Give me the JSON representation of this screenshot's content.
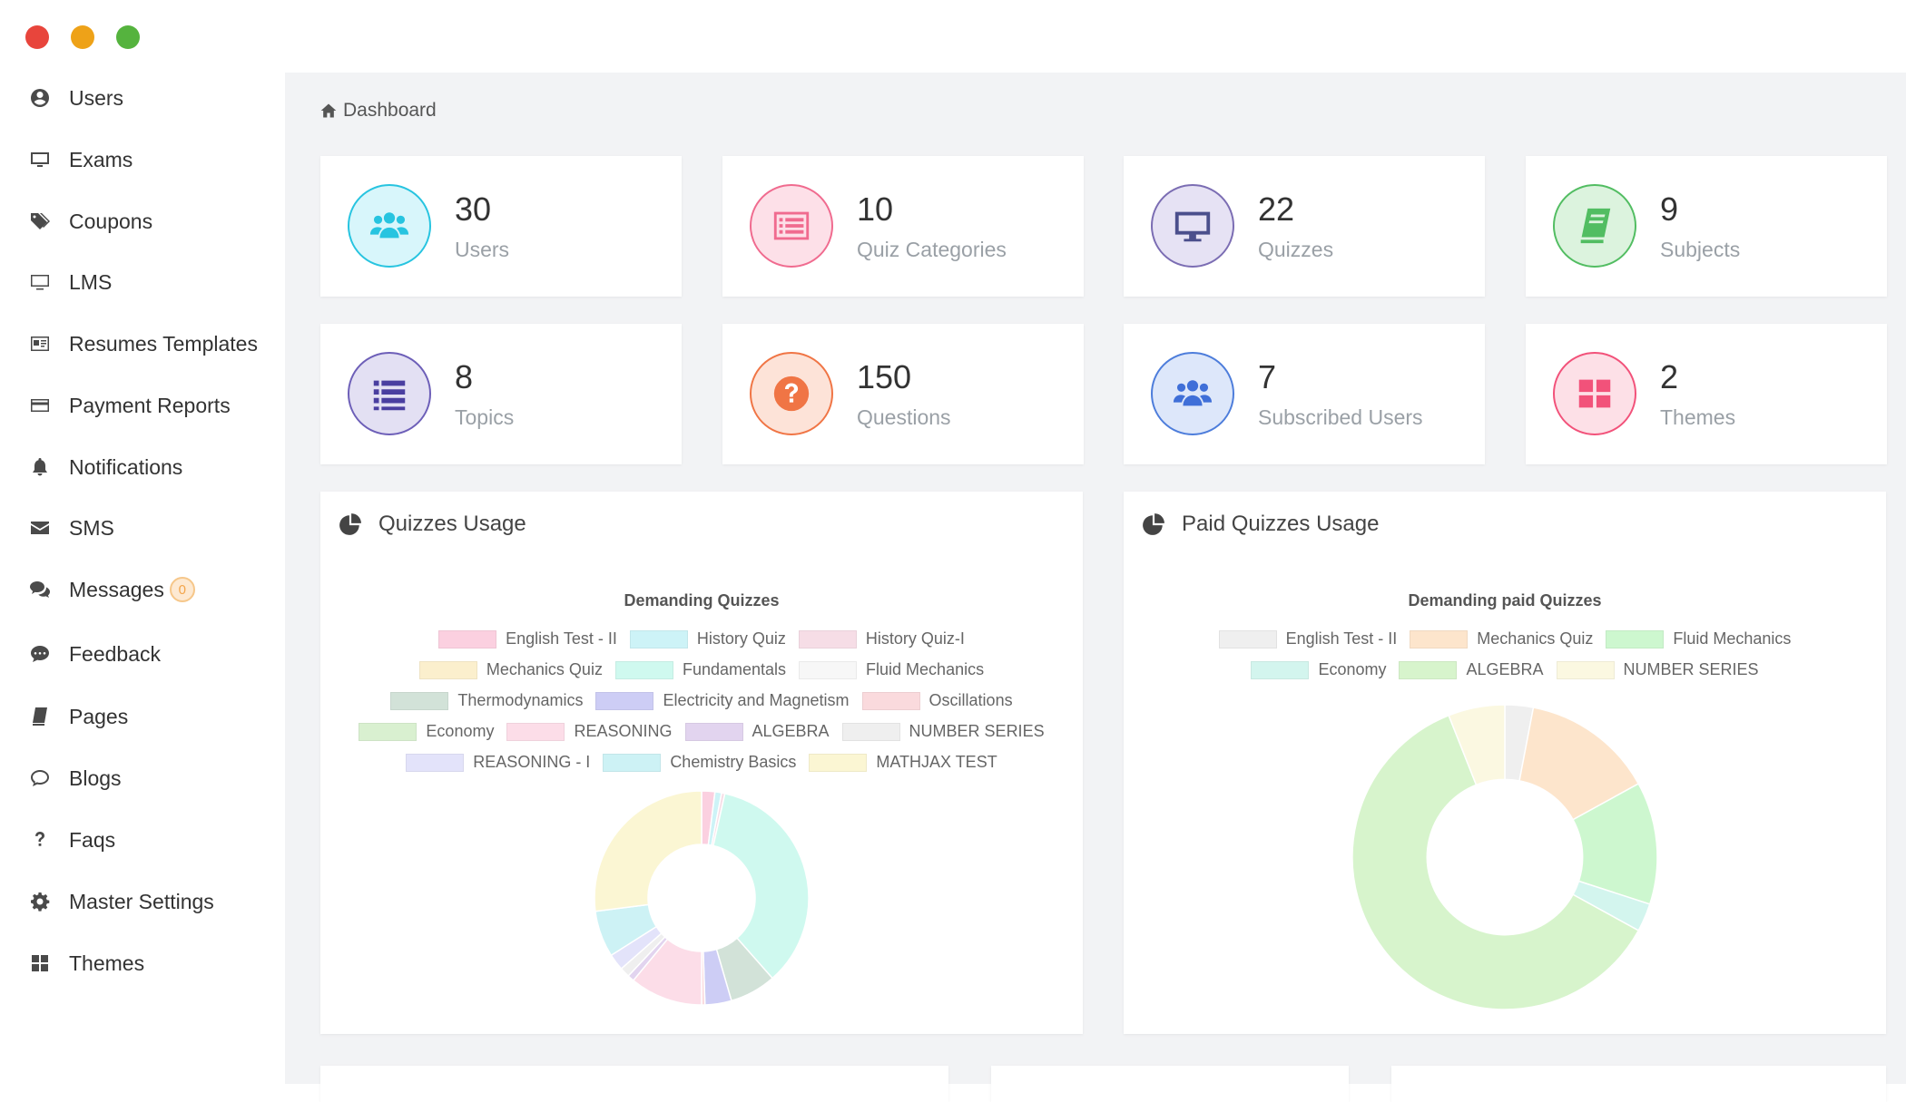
{
  "window": {
    "controls": [
      "close",
      "minimize",
      "maximize"
    ]
  },
  "sidebar": {
    "items": [
      {
        "label": "Users",
        "icon": "user-circle-icon"
      },
      {
        "label": "Exams",
        "icon": "monitor-icon"
      },
      {
        "label": "Coupons",
        "icon": "tags-icon"
      },
      {
        "label": "LMS",
        "icon": "desktop-icon"
      },
      {
        "label": "Resumes Templates",
        "icon": "id-card-icon"
      },
      {
        "label": "Payment Reports",
        "icon": "credit-card-icon"
      },
      {
        "label": "Notifications",
        "icon": "bell-icon"
      },
      {
        "label": "SMS",
        "icon": "envelope-icon"
      },
      {
        "label": "Messages",
        "icon": "comments-icon",
        "badge": "0"
      },
      {
        "label": "Feedback",
        "icon": "comment-dots-icon"
      },
      {
        "label": "Pages",
        "icon": "book-icon"
      },
      {
        "label": "Blogs",
        "icon": "speech-bubble-icon"
      },
      {
        "label": "Faqs",
        "icon": "question-icon"
      },
      {
        "label": "Master Settings",
        "icon": "gear-icon"
      },
      {
        "label": "Themes",
        "icon": "grid-icon"
      }
    ]
  },
  "breadcrumb": {
    "label": "Dashboard",
    "icon": "home-icon"
  },
  "stats": [
    {
      "value": "30",
      "label": "Users",
      "icon": "users-icon",
      "color": "#27c4e0",
      "bg": "#d8f6fb"
    },
    {
      "value": "10",
      "label": "Quiz Categories",
      "icon": "list-alt-icon",
      "color": "#f06b8f",
      "bg": "#fde0e8"
    },
    {
      "value": "22",
      "label": "Quizzes",
      "icon": "desktop-icon",
      "color": "#7b6db3",
      "bg": "#e6e2f4"
    },
    {
      "value": "9",
      "label": "Subjects",
      "icon": "book-icon",
      "color": "#52bd62",
      "bg": "#dcf3de"
    },
    {
      "value": "8",
      "label": "Topics",
      "icon": "list-icon",
      "color": "#6d5fb8",
      "bg": "#e3e0f3"
    },
    {
      "value": "150",
      "label": "Questions",
      "icon": "question-circle-icon",
      "color": "#f07545",
      "bg": "#fde3d8"
    },
    {
      "value": "7",
      "label": "Subscribed Users",
      "icon": "users-icon",
      "color": "#4d7ddb",
      "bg": "#dde7fa"
    },
    {
      "value": "2",
      "label": "Themes",
      "icon": "grid-icon",
      "color": "#f2527a",
      "bg": "#fde0e7"
    }
  ],
  "charts": [
    {
      "title": "Quizzes Usage",
      "icon": "pie-chart-icon"
    },
    {
      "title": "Paid Quizzes Usage",
      "icon": "pie-chart-icon"
    }
  ],
  "chart_data": [
    {
      "type": "pie",
      "title": "Demanding Quizzes",
      "donut": true,
      "legend_position": "top",
      "categories": [
        "English Test - II",
        "History  Quiz",
        "History Quiz-I",
        "Mechanics Quiz",
        "Fundamentals",
        "Fluid Mechanics",
        "Thermodynamics",
        "Electricity and Magnetism",
        "Oscillations",
        "Economy",
        "REASONING",
        "ALGEBRA",
        "NUMBER SERIES",
        "REASONING - I",
        "Chemistry Basics",
        "MATHJAX TEST"
      ],
      "values": [
        2,
        1,
        0.5,
        0,
        35,
        0,
        7,
        4,
        0.5,
        0,
        11,
        1,
        1.5,
        2.5,
        7,
        27
      ],
      "colors": [
        "#fbd0e0",
        "#cdf3f7",
        "#f6dde6",
        "#fbefcd",
        "#cff9ef",
        "#f7f7f7",
        "#d2e2d8",
        "#cdcdf5",
        "#fadadd",
        "#d9f0d0",
        "#fcdde8",
        "#e2d4ef",
        "#efefef",
        "#e3e3fa",
        "#cdf2f5",
        "#fbf6d3"
      ]
    },
    {
      "type": "pie",
      "title": "Demanding paid Quizzes",
      "donut": true,
      "legend_position": "top",
      "categories": [
        "English Test - II",
        "Mechanics Quiz",
        "Fluid Mechanics",
        "Economy",
        "ALGEBRA",
        "NUMBER SERIES"
      ],
      "values": [
        3,
        14,
        13,
        3,
        61,
        6
      ],
      "colors": [
        "#efefef",
        "#fde5cc",
        "#cdf7cf",
        "#d3f5ee",
        "#d7f4cc",
        "#fbf8e1"
      ]
    }
  ]
}
